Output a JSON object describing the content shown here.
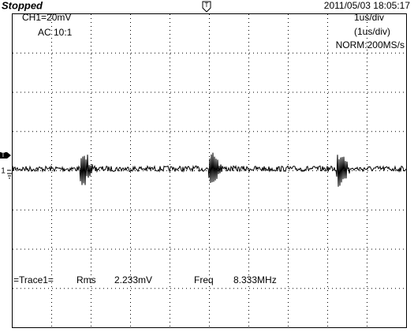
{
  "status": "Stopped",
  "datetime": "2011/05/03  18:05:17",
  "markers": {
    "trigger_top": "T",
    "trigger_left": "T",
    "channel": "1"
  },
  "channel": {
    "scale": "CH1=20mV",
    "coupling": "AC  10:1"
  },
  "timebase": {
    "div": "1us/div",
    "div_zoom": "(1us/div)",
    "sampling": "NORM:200MS/s"
  },
  "measurement": {
    "source": "=Trace1=",
    "rms_label": "Rms",
    "rms_value": "2.233mV",
    "freq_label": "Freq",
    "freq_value": "8.333MHz"
  }
}
